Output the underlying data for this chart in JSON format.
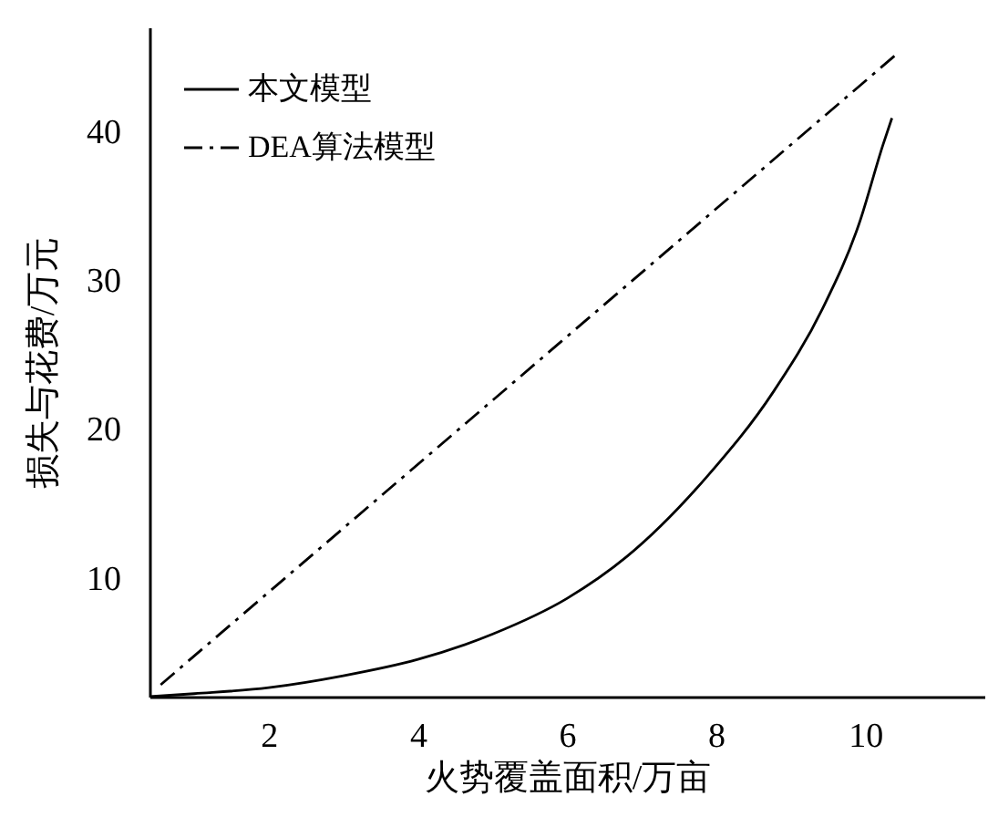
{
  "chart_data": {
    "type": "line",
    "xlabel": "火势覆盖面积/万亩",
    "ylabel": "损失与花费/万元",
    "xlim": [
      0.4,
      11.6
    ],
    "ylim": [
      2,
      47
    ],
    "xticks": [
      2,
      4,
      6,
      8,
      10
    ],
    "yticks": [
      10,
      20,
      30,
      40
    ],
    "grid": false,
    "legend": "top left",
    "marker": "none",
    "series": [
      {
        "name": "本文模型",
        "color": "#000000",
        "line_style": "solid",
        "x": [
          0.4,
          1,
          2,
          3,
          4,
          5,
          6,
          6.8,
          7.88,
          8.77,
          9.43,
          9.92,
          10.24,
          10.36
        ],
        "values": [
          2,
          2.2,
          2.6,
          3.4,
          4.5,
          6.2,
          8.6,
          11.4,
          16.8,
          22.5,
          28.1,
          33.8,
          39.1,
          40.9
        ]
      },
      {
        "name": "DEA算法模型",
        "color": "#000000",
        "line_style": "dashed",
        "x": [
          0.55,
          10.4
        ],
        "values": [
          2.8,
          45.1
        ]
      }
    ]
  }
}
